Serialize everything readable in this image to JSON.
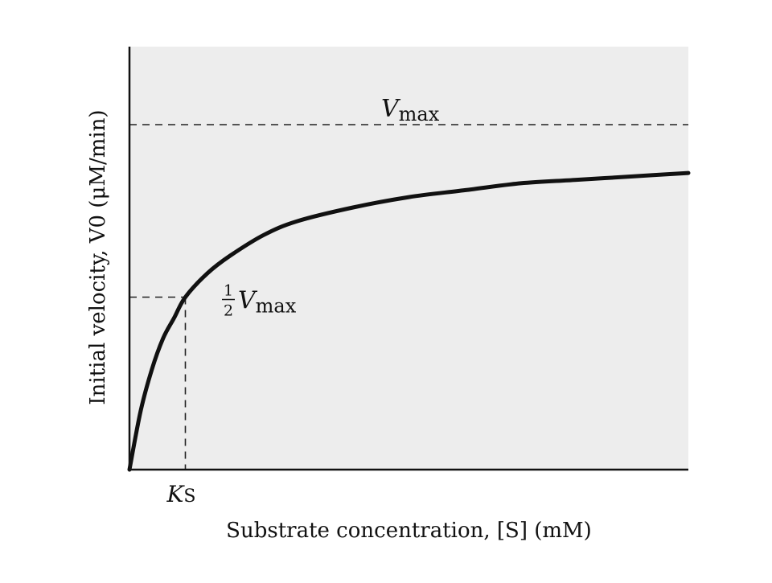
{
  "chart_data": {
    "type": "line",
    "title": "",
    "xlabel": "Substrate concentration, [S] (mM)",
    "ylabel": "Initial velocity, V0 (μM/min)",
    "xlim": [
      0,
      100
    ],
    "ylim": [
      0,
      100
    ],
    "grid": false,
    "legend": "none",
    "series": [
      {
        "x": [
          0,
          2,
          4,
          6,
          8,
          10,
          14,
          18,
          24,
          30,
          40,
          50,
          60,
          70,
          80,
          90,
          100
        ],
        "y": [
          0,
          17,
          29,
          38,
          44,
          50,
          57,
          62,
          68,
          72,
          76,
          79,
          81,
          83,
          84,
          85,
          86
        ]
      }
    ],
    "annotations": {
      "vmax": {
        "label": "V",
        "subscript": "max",
        "value": 100
      },
      "half_vmax": {
        "fraction_num": "1",
        "fraction_den": "2",
        "label": "V",
        "subscript": "max",
        "value": 50
      },
      "ks": {
        "label": "K",
        "subscript": "S",
        "value": 10
      }
    },
    "colors": {
      "plot_background": "#ededed",
      "curve": "#111111",
      "axis": "#111111",
      "guide": "#222222"
    }
  }
}
